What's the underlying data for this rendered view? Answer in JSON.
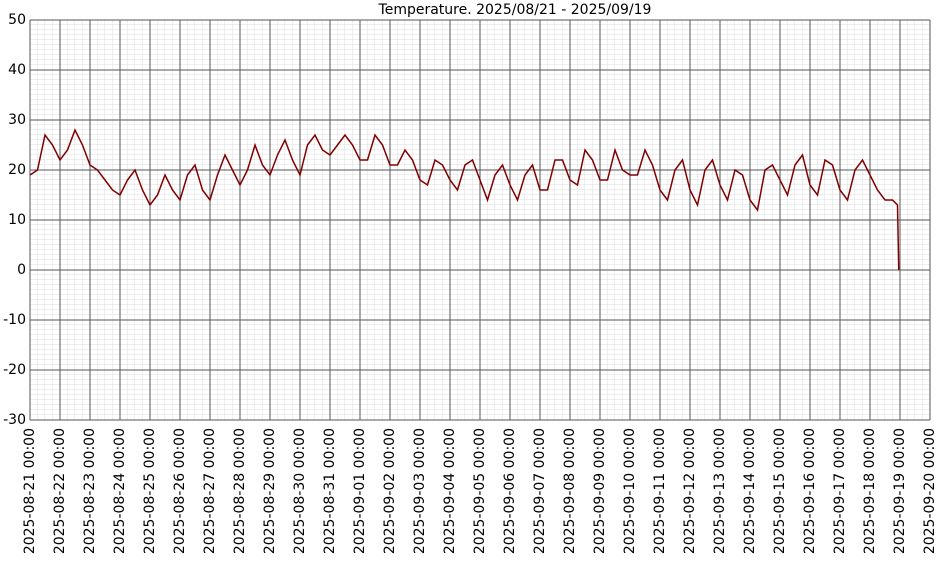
{
  "chart_data": {
    "type": "line",
    "title": "Temperature. 2025/08/21 - 2025/09/19",
    "x": [
      "2025-08-21 00:00",
      "2025-08-21 06:00",
      "2025-08-21 12:00",
      "2025-08-21 18:00",
      "2025-08-22 00:00",
      "2025-08-22 06:00",
      "2025-08-22 12:00",
      "2025-08-22 18:00",
      "2025-08-23 00:00",
      "2025-08-23 06:00",
      "2025-08-23 12:00",
      "2025-08-23 18:00",
      "2025-08-24 00:00",
      "2025-08-24 06:00",
      "2025-08-24 12:00",
      "2025-08-24 18:00",
      "2025-08-25 00:00",
      "2025-08-25 06:00",
      "2025-08-25 12:00",
      "2025-08-25 18:00",
      "2025-08-26 00:00",
      "2025-08-26 06:00",
      "2025-08-26 12:00",
      "2025-08-26 18:00",
      "2025-08-27 00:00",
      "2025-08-27 06:00",
      "2025-08-27 12:00",
      "2025-08-27 18:00",
      "2025-08-28 00:00",
      "2025-08-28 06:00",
      "2025-08-28 12:00",
      "2025-08-28 18:00",
      "2025-08-29 00:00",
      "2025-08-29 06:00",
      "2025-08-29 12:00",
      "2025-08-29 18:00",
      "2025-08-30 00:00",
      "2025-08-30 06:00",
      "2025-08-30 12:00",
      "2025-08-30 18:00",
      "2025-08-31 00:00",
      "2025-08-31 06:00",
      "2025-08-31 12:00",
      "2025-08-31 18:00",
      "2025-09-01 00:00",
      "2025-09-01 06:00",
      "2025-09-01 12:00",
      "2025-09-01 18:00",
      "2025-09-02 00:00",
      "2025-09-02 06:00",
      "2025-09-02 12:00",
      "2025-09-02 18:00",
      "2025-09-03 00:00",
      "2025-09-03 06:00",
      "2025-09-03 12:00",
      "2025-09-03 18:00",
      "2025-09-04 00:00",
      "2025-09-04 06:00",
      "2025-09-04 12:00",
      "2025-09-04 18:00",
      "2025-09-05 00:00",
      "2025-09-05 06:00",
      "2025-09-05 12:00",
      "2025-09-05 18:00",
      "2025-09-06 00:00",
      "2025-09-06 06:00",
      "2025-09-06 12:00",
      "2025-09-06 18:00",
      "2025-09-07 00:00",
      "2025-09-07 06:00",
      "2025-09-07 12:00",
      "2025-09-07 18:00",
      "2025-09-08 00:00",
      "2025-09-08 06:00",
      "2025-09-08 12:00",
      "2025-09-08 18:00",
      "2025-09-09 00:00",
      "2025-09-09 06:00",
      "2025-09-09 12:00",
      "2025-09-09 18:00",
      "2025-09-10 00:00",
      "2025-09-10 06:00",
      "2025-09-10 12:00",
      "2025-09-10 18:00",
      "2025-09-11 00:00",
      "2025-09-11 06:00",
      "2025-09-11 12:00",
      "2025-09-11 18:00",
      "2025-09-12 00:00",
      "2025-09-12 06:00",
      "2025-09-12 12:00",
      "2025-09-12 18:00",
      "2025-09-13 00:00",
      "2025-09-13 06:00",
      "2025-09-13 12:00",
      "2025-09-13 18:00",
      "2025-09-14 00:00",
      "2025-09-14 06:00",
      "2025-09-14 12:00",
      "2025-09-14 18:00",
      "2025-09-15 00:00",
      "2025-09-15 06:00",
      "2025-09-15 12:00",
      "2025-09-15 18:00",
      "2025-09-16 00:00",
      "2025-09-16 06:00",
      "2025-09-16 12:00",
      "2025-09-16 18:00",
      "2025-09-17 00:00",
      "2025-09-17 06:00",
      "2025-09-17 12:00",
      "2025-09-17 18:00",
      "2025-09-18 00:00",
      "2025-09-18 06:00",
      "2025-09-18 12:00",
      "2025-09-18 18:00",
      "2025-09-18 22:00",
      "2025-09-18 23:00"
    ],
    "series": [
      {
        "name": "Temperature",
        "color": "#800000",
        "values": [
          19,
          20,
          27,
          25,
          22,
          24,
          28,
          25,
          21,
          20,
          18,
          16,
          15,
          18,
          20,
          16,
          13,
          15,
          19,
          16,
          14,
          19,
          21,
          16,
          14,
          19,
          23,
          20,
          17,
          20,
          25,
          21,
          19,
          23,
          26,
          22,
          19,
          25,
          27,
          24,
          23,
          25,
          27,
          25,
          22,
          22,
          27,
          25,
          21,
          21,
          24,
          22,
          18,
          17,
          22,
          21,
          18,
          16,
          21,
          22,
          18,
          14,
          19,
          21,
          17,
          14,
          19,
          21,
          16,
          16,
          22,
          22,
          18,
          17,
          24,
          22,
          18,
          18,
          24,
          20,
          19,
          19,
          24,
          21,
          16,
          14,
          20,
          22,
          16,
          13,
          20,
          22,
          17,
          14,
          20,
          19,
          14,
          12,
          20,
          21,
          18,
          15,
          21,
          23,
          17,
          15,
          22,
          21,
          16,
          14,
          20,
          22,
          19,
          16,
          14,
          14,
          13,
          0
        ]
      }
    ],
    "xlim": [
      "2025-08-21 00:00",
      "2025-09-20 00:00"
    ],
    "xticks": [
      "2025-08-21 00:00",
      "2025-08-22 00:00",
      "2025-08-23 00:00",
      "2025-08-24 00:00",
      "2025-08-25 00:00",
      "2025-08-26 00:00",
      "2025-08-27 00:00",
      "2025-08-28 00:00",
      "2025-08-29 00:00",
      "2025-08-30 00:00",
      "2025-08-31 00:00",
      "2025-09-01 00:00",
      "2025-09-02 00:00",
      "2025-09-03 00:00",
      "2025-09-04 00:00",
      "2025-09-05 00:00",
      "2025-09-06 00:00",
      "2025-09-07 00:00",
      "2025-09-08 00:00",
      "2025-09-09 00:00",
      "2025-09-10 00:00",
      "2025-09-11 00:00",
      "2025-09-12 00:00",
      "2025-09-13 00:00",
      "2025-09-14 00:00",
      "2025-09-15 00:00",
      "2025-09-16 00:00",
      "2025-09-17 00:00",
      "2025-09-18 00:00",
      "2025-09-19 00:00",
      "2025-09-20 00:00"
    ],
    "ylim": [
      -30,
      50
    ],
    "yticks": [
      -30,
      -20,
      -10,
      0,
      10,
      20,
      30,
      40,
      50
    ],
    "grid": true
  }
}
